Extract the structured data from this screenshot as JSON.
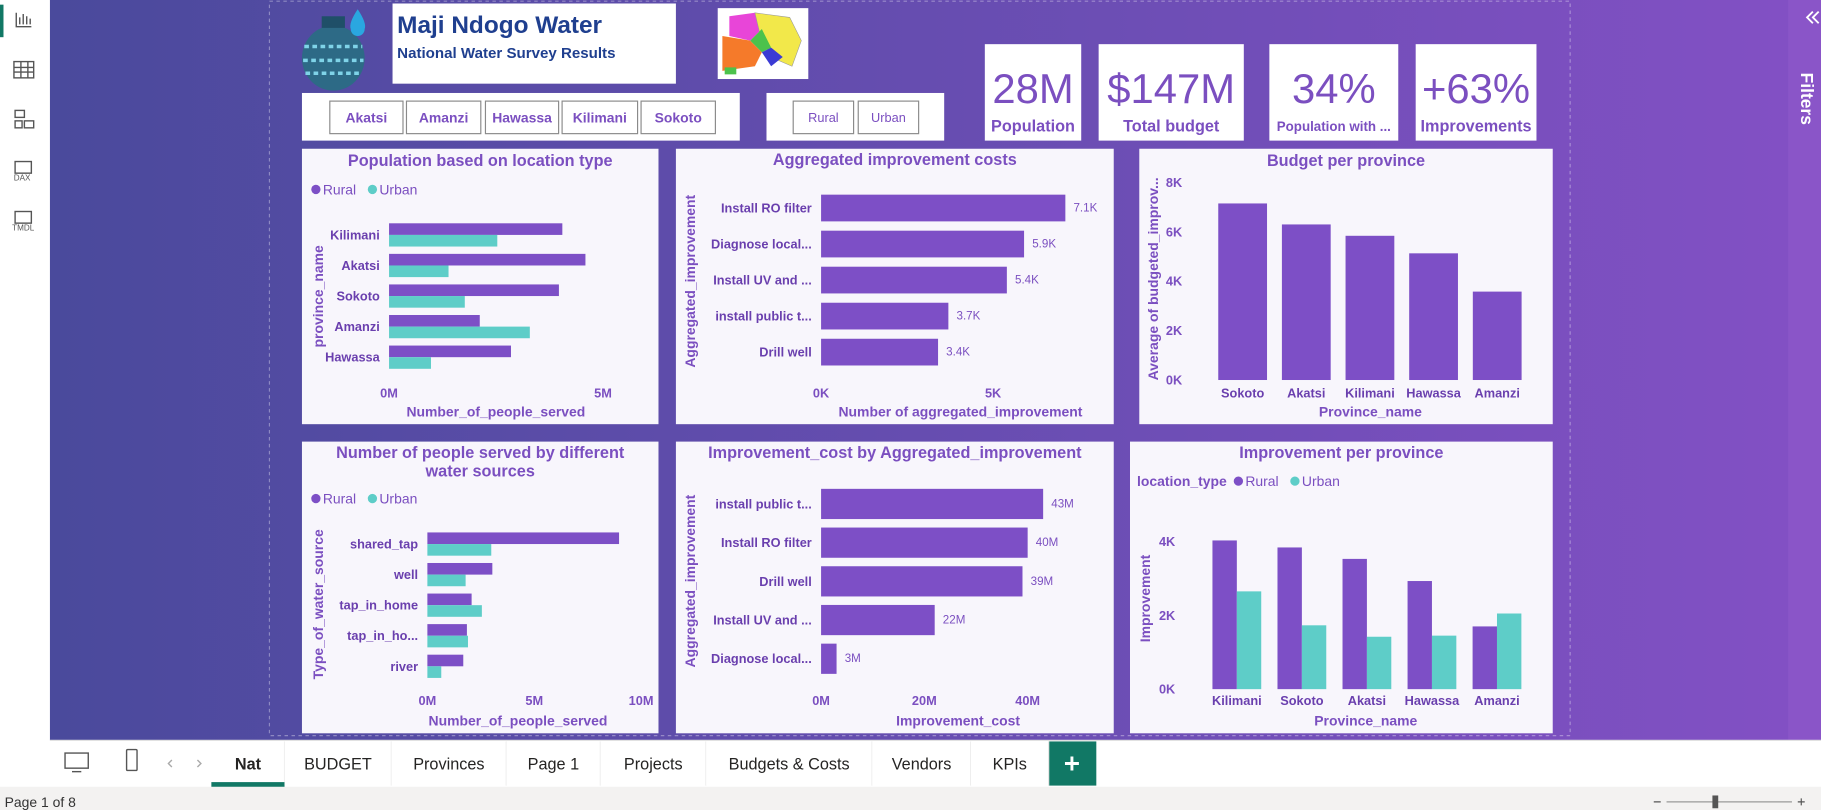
{
  "sidebar": {
    "icons": [
      "DAX",
      "TMDL"
    ]
  },
  "header": {
    "title": "Maji Ndogo Water",
    "subtitle": "National Water Survey Results"
  },
  "slicers": {
    "provinces": [
      "Akatsi",
      "Amanzi",
      "Hawassa",
      "Kilimani",
      "Sokoto"
    ],
    "location_types": [
      "Rural",
      "Urban"
    ]
  },
  "cards": [
    {
      "value": "28M",
      "label": "Population"
    },
    {
      "value": "$147M",
      "label": "Total budget"
    },
    {
      "value": "34%",
      "label": "Population with ..."
    },
    {
      "value": "+63%",
      "label": "Improvements"
    }
  ],
  "chart_data": [
    {
      "type": "barh",
      "title": "Population based on location type",
      "x_label": "Number_of_people_served",
      "y_label": "province_name",
      "legend": true,
      "categories": [
        "Kilimani",
        "Akatsi",
        "Sokoto",
        "Amanzi",
        "Hawassa"
      ],
      "series": [
        {
          "name": "Rural",
          "color": "#7d4fc6",
          "values": [
            4050000,
            4590000,
            3970000,
            2120000,
            2850000
          ]
        },
        {
          "name": "Urban",
          "color": "#5ecdc8",
          "values": [
            2530000,
            1390000,
            1770000,
            3290000,
            980000
          ]
        }
      ],
      "xlim": [
        0,
        5700000
      ],
      "xticks": [
        {
          "value": 0,
          "label": "0M"
        },
        {
          "value": 5000000,
          "label": "5M"
        }
      ]
    },
    {
      "type": "barh",
      "title": "Aggregated improvement costs",
      "x_label": "Number of aggregated_improvement",
      "y_label": "Aggregated_improvement",
      "categories": [
        "Install RO filter",
        "Diagnose local...",
        "Install UV and ...",
        "install public t...",
        "Drill well"
      ],
      "values": [
        7100,
        5900,
        5400,
        3700,
        3400
      ],
      "value_labels": [
        "7.1K",
        "5.9K",
        "5.4K",
        "3.7K",
        "3.4K"
      ],
      "color": "#7d4fc6",
      "xlim": [
        0,
        8000
      ],
      "xticks": [
        {
          "value": 0,
          "label": "0K"
        },
        {
          "value": 5000,
          "label": "5K"
        }
      ]
    },
    {
      "type": "bar",
      "title": "Budget per province",
      "x_label": "Province_name",
      "y_label": "Average of budgeted_improv...",
      "categories": [
        "Sokoto",
        "Akatsi",
        "Kilimani",
        "Hawassa",
        "Amanzi"
      ],
      "values": [
        7150,
        6300,
        5840,
        5130,
        3580
      ],
      "color": "#7d4fc6",
      "ylim": [
        0,
        8000
      ],
      "yticks": [
        {
          "value": 0,
          "label": "0K"
        },
        {
          "value": 2000,
          "label": "2K"
        },
        {
          "value": 4000,
          "label": "4K"
        },
        {
          "value": 6000,
          "label": "6K"
        },
        {
          "value": 8000,
          "label": "8K"
        }
      ]
    },
    {
      "type": "barh",
      "title": "Number of people served by different water sources",
      "x_label": "Number_of_people_served",
      "y_label": "Type_of_water_source",
      "legend": true,
      "categories": [
        "shared_tap",
        "well",
        "tap_in_home",
        "tap_in_ho...",
        "river"
      ],
      "series": [
        {
          "name": "Rural",
          "color": "#7d4fc6",
          "values": [
            8970000,
            3040000,
            2070000,
            1850000,
            1680000
          ]
        },
        {
          "name": "Urban",
          "color": "#5ecdc8",
          "values": [
            2990000,
            1790000,
            2550000,
            1900000,
            650000
          ]
        }
      ],
      "xlim": [
        0,
        10000000
      ],
      "xticks": [
        {
          "value": 0,
          "label": "0M"
        },
        {
          "value": 5000000,
          "label": "5M"
        },
        {
          "value": 10000000,
          "label": "10M"
        }
      ]
    },
    {
      "type": "barh",
      "title": "Improvement_cost by Aggregated_improvement",
      "x_label": "Improvement_cost",
      "y_label": "Aggregated_improvement",
      "categories": [
        "install public t...",
        "Install RO filter",
        "Drill well",
        "Install UV and ...",
        "Diagnose local..."
      ],
      "values": [
        43000000,
        40000000,
        39000000,
        22000000,
        3000000
      ],
      "value_labels": [
        "43M",
        "40M",
        "39M",
        "22M",
        "3M"
      ],
      "color": "#7d4fc6",
      "xlim": [
        0,
        47000000
      ],
      "xticks": [
        {
          "value": 0,
          "label": "0M"
        },
        {
          "value": 20000000,
          "label": "20M"
        },
        {
          "value": 40000000,
          "label": "40M"
        }
      ]
    },
    {
      "type": "bar",
      "title": "Improvement per province",
      "legend_title": "location_type",
      "x_label": "Province_name",
      "y_label": "Improvement",
      "legend": true,
      "categories": [
        "Kilimani",
        "Sokoto",
        "Akatsi",
        "Hawassa",
        "Amanzi"
      ],
      "series": [
        {
          "name": "Rural",
          "color": "#7d4fc6",
          "values": [
            4030,
            3840,
            3530,
            2930,
            1700
          ]
        },
        {
          "name": "Urban",
          "color": "#5ecdc8",
          "values": [
            2650,
            1730,
            1420,
            1450,
            2050
          ]
        }
      ],
      "ylim": [
        0,
        4400
      ],
      "yticks": [
        {
          "value": 0,
          "label": "0K"
        },
        {
          "value": 2000,
          "label": "2K"
        },
        {
          "value": 4000,
          "label": "4K"
        }
      ]
    }
  ],
  "filters_pane": {
    "label": "Filters"
  },
  "tabs": [
    "Nat",
    "BUDGET",
    "Provinces",
    "Page 1",
    "Projects",
    "Budgets & Costs",
    "Vendors",
    "KPIs"
  ],
  "status": {
    "page": "Page 1 of 8"
  }
}
